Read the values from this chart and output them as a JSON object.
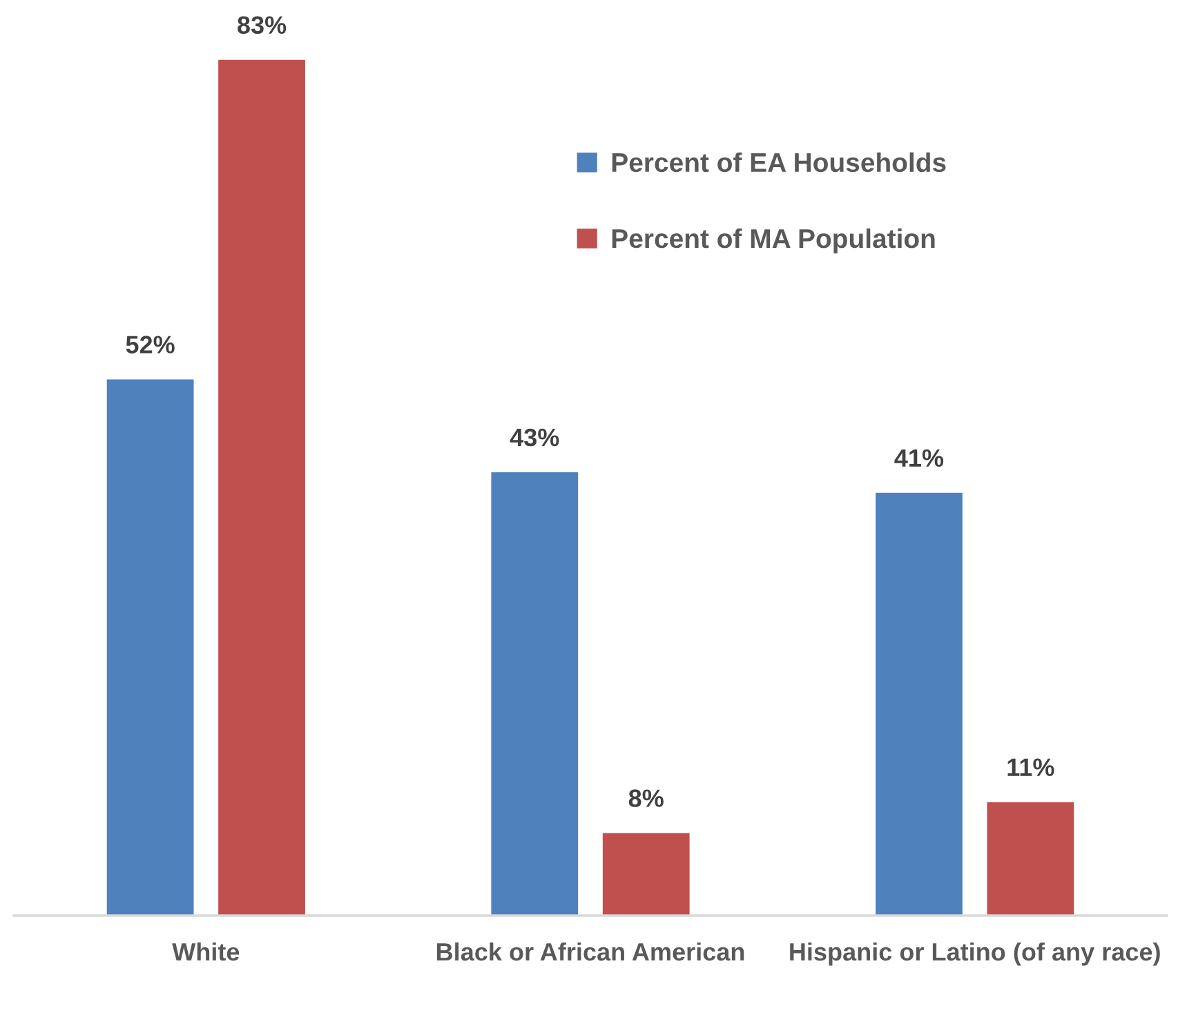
{
  "chart_data": {
    "type": "bar",
    "categories": [
      "White",
      "Black or African American",
      "Hispanic or Latino (of any race)"
    ],
    "series": [
      {
        "name": "Percent of EA Households",
        "color": "#4f81bd",
        "values": [
          52,
          43,
          41
        ],
        "value_labels": [
          "52%",
          "43%",
          "41%"
        ]
      },
      {
        "name": "Percent of MA Population",
        "color": "#c0504d",
        "values": [
          83,
          8,
          11
        ],
        "value_labels": [
          "83%",
          "8%",
          "11%"
        ]
      }
    ],
    "legend": "top right",
    "grid": false
  }
}
